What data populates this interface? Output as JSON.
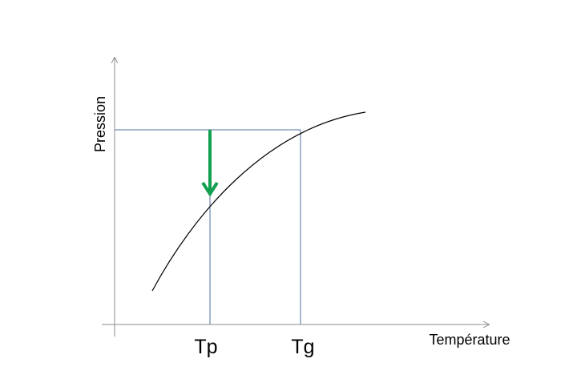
{
  "axes": {
    "y_label": "Pression",
    "x_label": "Température"
  },
  "markers": {
    "points": [
      "Tp",
      "Tg"
    ]
  }
}
